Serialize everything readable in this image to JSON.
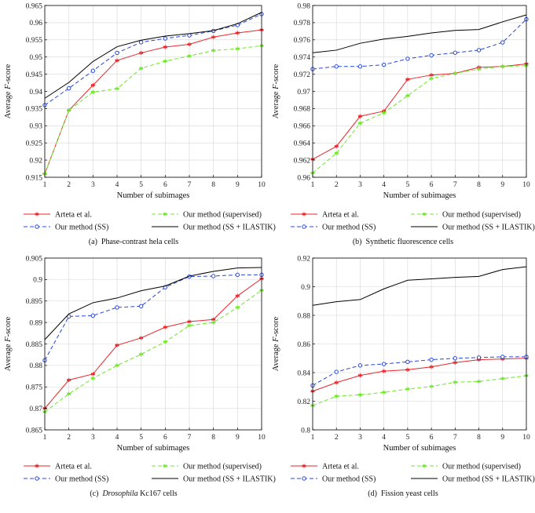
{
  "chart_data": [
    {
      "type": "line",
      "caption_label": "(a)",
      "caption_text": "Phase-contrast hela cells",
      "xlabel": "Number of subimages",
      "ylabel_parts": [
        "Average ",
        "F",
        "-score"
      ],
      "xlim": [
        1,
        10
      ],
      "ylim": [
        0.915,
        0.965
      ],
      "x": [
        1,
        2,
        3,
        4,
        5,
        6,
        7,
        8,
        9,
        10
      ],
      "xticks": [
        "1",
        "2",
        "3",
        "4",
        "5",
        "6",
        "7",
        "8",
        "9",
        "10"
      ],
      "yticks": [
        "0.915",
        "0.92",
        "0.925",
        "0.93",
        "0.935",
        "0.94",
        "0.945",
        "0.95",
        "0.955",
        "0.96",
        "0.965"
      ],
      "grid": true,
      "series": [
        {
          "name": "Arteta et al.",
          "values": [
            0.916,
            0.9345,
            0.9418,
            0.949,
            0.9512,
            0.9529,
            0.9537,
            0.9558,
            0.957,
            0.9579
          ]
        },
        {
          "name": "Our method (supervised)",
          "values": [
            0.916,
            0.9345,
            0.9398,
            0.9408,
            0.9467,
            0.9488,
            0.9503,
            0.9519,
            0.9524,
            0.9533
          ]
        },
        {
          "name": "Our method (SS)",
          "values": [
            0.936,
            0.9409,
            0.946,
            0.9512,
            0.9543,
            0.9554,
            0.9563,
            0.9576,
            0.9593,
            0.9625
          ]
        },
        {
          "name": "Our method (SS + ILASTIK)",
          "values": [
            0.938,
            0.9426,
            0.9487,
            0.953,
            0.9549,
            0.9561,
            0.9568,
            0.9577,
            0.9597,
            0.963
          ]
        }
      ]
    },
    {
      "type": "line",
      "caption_label": "(b)",
      "caption_text": "Synthetic fluorescence cells",
      "xlabel": "Number of subimages",
      "ylabel_parts": [
        "Average ",
        "F",
        "-score"
      ],
      "xlim": [
        1,
        10
      ],
      "ylim": [
        0.96,
        0.98
      ],
      "x": [
        1,
        2,
        3,
        4,
        5,
        6,
        7,
        8,
        9,
        10
      ],
      "xticks": [
        "1",
        "2",
        "3",
        "4",
        "5",
        "6",
        "7",
        "8",
        "9",
        "10"
      ],
      "yticks": [
        "0.96",
        "0.962",
        "0.964",
        "0.966",
        "0.968",
        "0.97",
        "0.972",
        "0.974",
        "0.976",
        "0.978",
        "0.98"
      ],
      "grid": true,
      "series": [
        {
          "name": "Arteta et al.",
          "values": [
            0.9621,
            0.9636,
            0.9671,
            0.9677,
            0.9714,
            0.9719,
            0.9721,
            0.9728,
            0.9729,
            0.9732
          ]
        },
        {
          "name": "Our method (supervised)",
          "values": [
            0.9605,
            0.9628,
            0.9663,
            0.9675,
            0.9695,
            0.9715,
            0.9721,
            0.9726,
            0.9729,
            0.973
          ]
        },
        {
          "name": "Our method (SS)",
          "values": [
            0.9726,
            0.9729,
            0.9729,
            0.9731,
            0.9738,
            0.9742,
            0.9745,
            0.9748,
            0.9757,
            0.9784
          ]
        },
        {
          "name": "Our method (SS + ILASTIK)",
          "values": [
            0.9745,
            0.9748,
            0.9756,
            0.9761,
            0.9764,
            0.9768,
            0.9771,
            0.9772,
            0.9781,
            0.9789
          ]
        }
      ]
    },
    {
      "type": "line",
      "caption_label": "(c)",
      "caption_italic": "Drosophila",
      "caption_text": " Kc167 cells",
      "xlabel": "Number of subimages",
      "ylabel_parts": [
        "Average ",
        "F",
        "-score"
      ],
      "xlim": [
        1,
        10
      ],
      "ylim": [
        0.865,
        0.905
      ],
      "x": [
        1,
        2,
        3,
        4,
        5,
        6,
        7,
        8,
        9,
        10
      ],
      "xticks": [
        "1",
        "2",
        "3",
        "4",
        "5",
        "6",
        "7",
        "8",
        "9",
        "10"
      ],
      "yticks": [
        "0.865",
        "0.87",
        "0.875",
        "0.88",
        "0.885",
        "0.89",
        "0.895",
        "0.9",
        "0.905"
      ],
      "grid": true,
      "series": [
        {
          "name": "Arteta et al.",
          "values": [
            0.87,
            0.8766,
            0.878,
            0.8847,
            0.8864,
            0.8889,
            0.8902,
            0.8907,
            0.8962,
            0.9002
          ]
        },
        {
          "name": "Our method (supervised)",
          "values": [
            0.8692,
            0.8734,
            0.877,
            0.88,
            0.8826,
            0.8855,
            0.8893,
            0.89,
            0.8935,
            0.8975
          ]
        },
        {
          "name": "Our method (SS)",
          "values": [
            0.8812,
            0.8914,
            0.8916,
            0.8935,
            0.8938,
            0.8982,
            0.9007,
            0.9008,
            0.9011,
            0.9011
          ]
        },
        {
          "name": "Our method (SS + ILASTIK)",
          "values": [
            0.886,
            0.892,
            0.8946,
            0.8957,
            0.8974,
            0.8985,
            0.9008,
            0.9019,
            0.9027,
            0.9028
          ]
        }
      ]
    },
    {
      "type": "line",
      "caption_label": "(d)",
      "caption_text": "Fission yeast cells",
      "xlabel": "Number of subimages",
      "ylabel_parts": [
        "Average ",
        "F",
        "-score"
      ],
      "xlim": [
        1,
        10
      ],
      "ylim": [
        0.8,
        0.92
      ],
      "x": [
        1,
        2,
        3,
        4,
        5,
        6,
        7,
        8,
        9,
        10
      ],
      "xticks": [
        "1",
        "2",
        "3",
        "4",
        "5",
        "6",
        "7",
        "8",
        "9",
        "10"
      ],
      "yticks": [
        "0.8",
        "0.82",
        "0.84",
        "0.86",
        "0.88",
        "0.9",
        "0.92"
      ],
      "grid": true,
      "series": [
        {
          "name": "Arteta et al.",
          "values": [
            0.827,
            0.833,
            0.838,
            0.841,
            0.842,
            0.844,
            0.847,
            0.849,
            0.8495,
            0.85
          ]
        },
        {
          "name": "Our method (supervised)",
          "values": [
            0.817,
            0.8235,
            0.8245,
            0.8262,
            0.8285,
            0.8303,
            0.8333,
            0.8338,
            0.8358,
            0.8378
          ]
        },
        {
          "name": "Our method (SS)",
          "values": [
            0.831,
            0.8405,
            0.845,
            0.846,
            0.8475,
            0.849,
            0.85,
            0.8505,
            0.851,
            0.851
          ]
        },
        {
          "name": "Our method (SS + ILASTIK)",
          "values": [
            0.887,
            0.8895,
            0.891,
            0.8985,
            0.9045,
            0.9055,
            0.9065,
            0.9072,
            0.912,
            0.914
          ]
        }
      ]
    }
  ],
  "styles": {
    "Arteta et al.": {
      "color": "#e8262b",
      "dash": "",
      "marker": "star"
    },
    "Our method (supervised)": {
      "color": "#6ee82a",
      "dash": "5,3",
      "marker": "star"
    },
    "Our method (SS)": {
      "color": "#2747d8",
      "dash": "5,3",
      "marker": "circle"
    },
    "Our method (SS + ILASTIK)": {
      "color": "#000000",
      "dash": "",
      "marker": "none"
    }
  },
  "legend_layout": [
    [
      "Arteta et al.",
      "Our method (supervised)"
    ],
    [
      "Our method (SS)",
      "Our method (SS + ILASTIK)"
    ]
  ]
}
